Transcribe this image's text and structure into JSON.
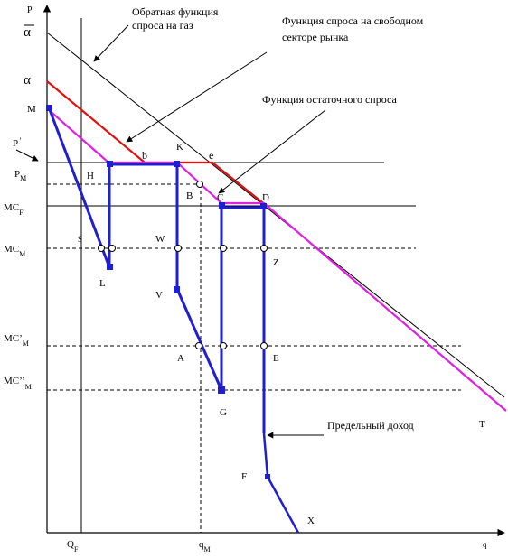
{
  "labels": {
    "p_axis": "P",
    "alpha_bar": "α",
    "alpha": "α",
    "M": "M",
    "P_prime": "P",
    "P_M": "P",
    "P_M_sub": "M",
    "MC_F": "MC",
    "MC_F_sub": "F",
    "MC_M": "MC",
    "MC_M_sub": "M",
    "MCp_M": "MC’",
    "MCp_M_sub": "M",
    "MCpp_M": "MC’’",
    "MCpp_M_sub": "M",
    "Q_F": "Q",
    "Q_F_sub": "F",
    "q_M": "q",
    "q_M_sub": "M",
    "q_axis": "q",
    "b": "b",
    "K": "K",
    "e": "e",
    "H": "H",
    "B": "B",
    "C": "C",
    "D": "D",
    "S": "S",
    "W": "W",
    "Z": "Z",
    "L": "L",
    "V": "V",
    "A": "A",
    "E": "E",
    "G": "G",
    "F": "F",
    "X": "X",
    "T": "T"
  },
  "annotations": {
    "inverse_demand_line1": "Обратная функция",
    "inverse_demand_line2": "спроса на газ",
    "free_sector_line1": "Функция спроса на свободном",
    "free_sector_line2": "секторе рынка",
    "residual_demand": "Функция остаточного спроса",
    "marginal_revenue": "Предельный доход"
  },
  "colors": {
    "marginal_revenue": "#1f1fd0",
    "free_sector_demand": "#e01010",
    "residual_demand": "#e020e0",
    "axes": "#000000"
  }
}
